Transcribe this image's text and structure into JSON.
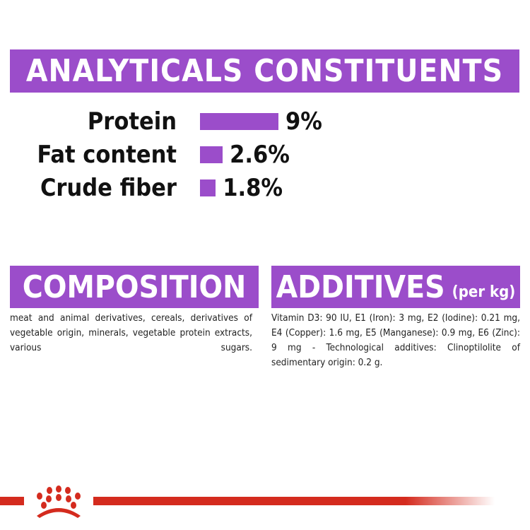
{
  "title": "ANALYTICALS CONSTITUENTS",
  "constituents": [
    {
      "label": "Protein",
      "value": "9%",
      "percent": 9
    },
    {
      "label": "Fat content",
      "value": "2.6%",
      "percent": 2.6
    },
    {
      "label": "Crude fiber",
      "value": "1.8%",
      "percent": 1.8
    }
  ],
  "composition": {
    "heading": "COMPOSITION",
    "text": "meat and animal derivatives, cereals, derivatives of vegetable origin, minerals, vegetable protein extracts, various sugars."
  },
  "additives": {
    "heading": "ADDITIVES",
    "unit": "(per kg)",
    "text": "Vitamin D3: 90 IU, E1 (Iron): 3 mg, E2 (Iodine): 0.21 mg, E4 (Copper): 1.6 mg, E5 (Manganese): 0.9 mg, E6 (Zinc): 9 mg - Technological additives: Clinoptilolite of sedimentary origin: 0.2 g."
  },
  "colors": {
    "accent": "#9b4dca",
    "brand_red": "#d42b1e"
  },
  "logo": "royal-canin-crown"
}
